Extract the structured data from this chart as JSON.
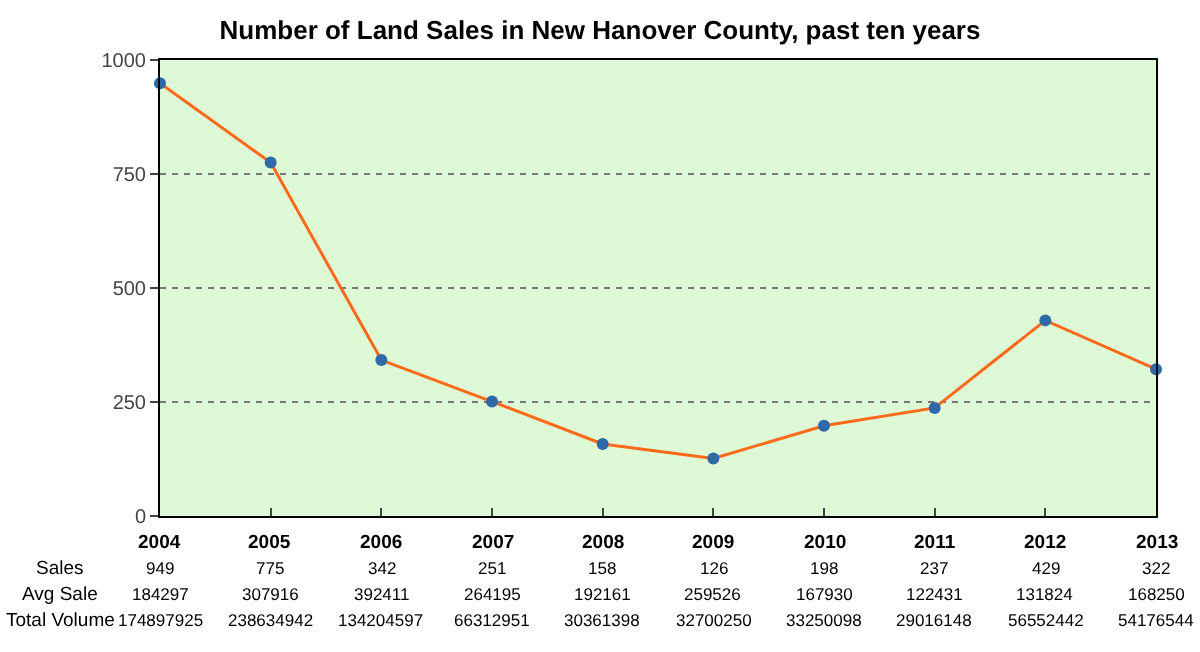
{
  "chart_data": {
    "type": "line",
    "title": "Number of Land Sales in New Hanover County, past ten years",
    "categories": [
      "2004",
      "2005",
      "2006",
      "2007",
      "2008",
      "2009",
      "2010",
      "2011",
      "2012",
      "2013"
    ],
    "series": [
      {
        "name": "Sales",
        "color": "#ff6a1a",
        "values": [
          949,
          775,
          342,
          251,
          158,
          126,
          198,
          237,
          429,
          322
        ]
      }
    ],
    "annotations": [
      "Avg Sale",
      "184297",
      "307916",
      "392411",
      "264195",
      "192161",
      "259526",
      "167930",
      "122431",
      "131824",
      "168250",
      "Total Volume",
      "174897925",
      "238634942",
      "134204597",
      "66312951",
      "30361398",
      "32700250",
      "33250098",
      "29016148",
      "56552442",
      "54176544"
    ],
    "ylim": [
      0,
      1000
    ],
    "yticks": [
      0,
      250,
      500,
      750,
      1000
    ],
    "grid": "y",
    "marker": "circle",
    "line_style": "solid",
    "data_labels": true,
    "legend": false
  }
}
